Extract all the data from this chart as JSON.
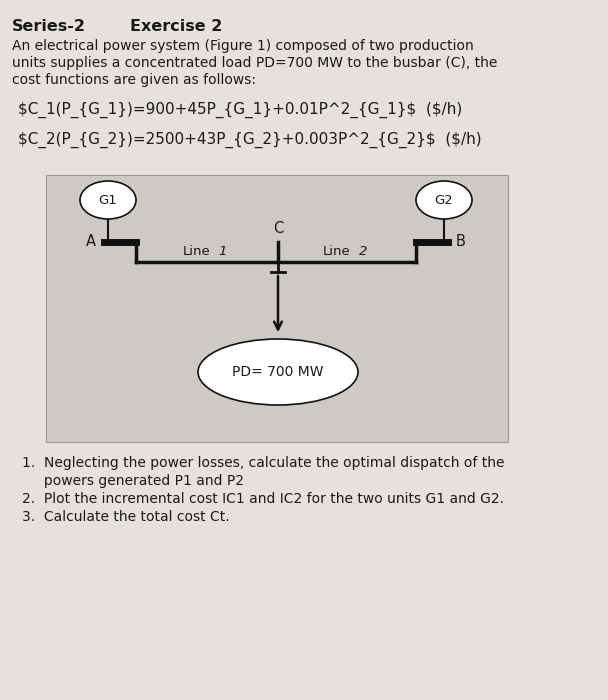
{
  "title1": "Series-2",
  "title2": "Exercise 2",
  "body_line1": "An electrical power system (Figure 1) composed of two production",
  "body_line2": "units supplies a concentrated load PD=700 MW to the busbar (C), the",
  "body_line3": "cost functions are given as follows:",
  "page_bg": "#e5e1dc",
  "diagram_bg": "#cdc9c4",
  "text_color": "#1a1a1a",
  "line_color": "#111111",
  "q1a": "1.  Neglecting the power losses, calculate the optimal dispatch of the",
  "q1b": "     powers generated P1 and P2",
  "q2": "2.  Plot the incremental cost IC1 and IC2 for the two units G1 and G2.",
  "q3": "3.  Calculate the total cost Ct."
}
